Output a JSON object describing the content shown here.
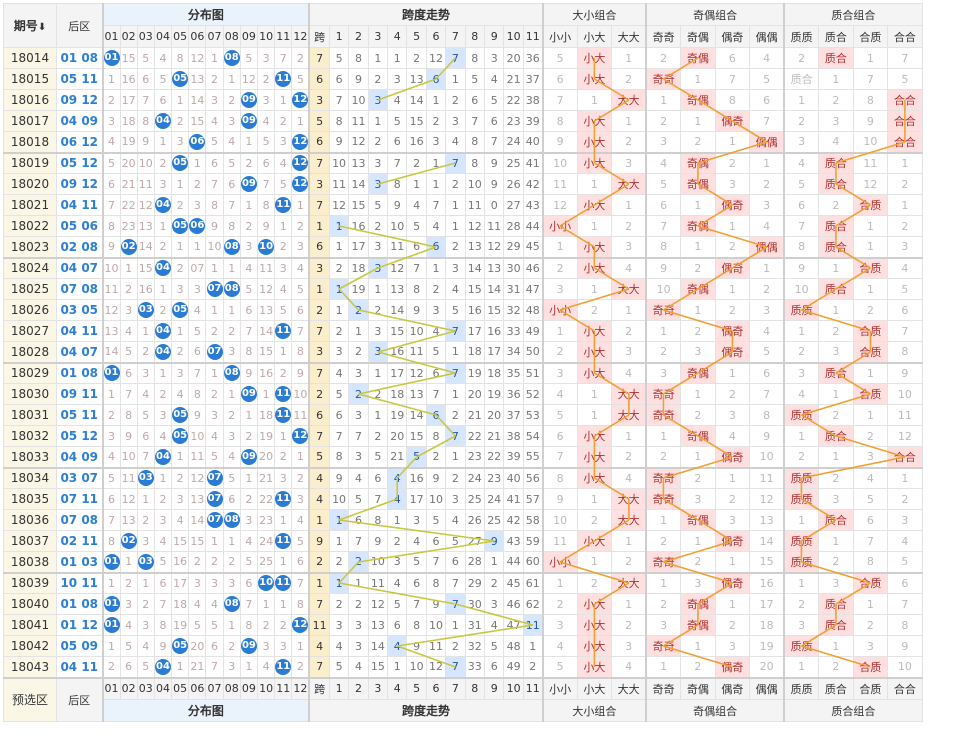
{
  "header": {
    "period": "期号",
    "sort_arrow": "⬇",
    "back": "后区",
    "dist": "分布图",
    "span": "跨度走势",
    "dx": "大小组合",
    "jo": "奇偶组合",
    "zh": "质合组合",
    "kua": "跨",
    "nums": [
      "01",
      "02",
      "03",
      "04",
      "05",
      "06",
      "07",
      "08",
      "09",
      "10",
      "11",
      "12"
    ],
    "span_cols": [
      "1",
      "2",
      "3",
      "4",
      "5",
      "6",
      "7",
      "8",
      "9",
      "10",
      "11"
    ],
    "dx_cols": [
      "小小",
      "小大",
      "大大"
    ],
    "jo_cols": [
      "奇奇",
      "奇偶",
      "偶奇",
      "偶偶"
    ],
    "zh_cols": [
      "质质",
      "质合",
      "合质",
      "合合"
    ]
  },
  "footer": {
    "pre": "预选区",
    "back": "后区",
    "dist": "分布图",
    "span": "跨度走势",
    "dx": "大小组合",
    "jo": "奇偶组合",
    "zh": "质合组合"
  },
  "colors": {
    "ball": "#2a7bd3",
    "mark": "#ffe0e0",
    "span_line": "#c8c840",
    "combo_line": "#f0a030"
  },
  "rows": [
    {
      "p": "18014",
      "b": "01 08",
      "d": [
        "01",
        "15",
        "5",
        "4",
        "8",
        "12",
        "1",
        "08",
        "5",
        "3",
        "7",
        "2"
      ],
      "k": "7",
      "s": [
        "5",
        "8",
        "1",
        "1",
        "2",
        "12",
        "7",
        "8",
        "3",
        "20",
        "36"
      ],
      "dx": [
        "5",
        "小大",
        "1"
      ],
      "jo": [
        "2",
        "奇偶",
        "6",
        "4"
      ],
      "zh": [
        "2",
        "质合",
        "1",
        "7"
      ]
    },
    {
      "p": "18015",
      "b": "05 11",
      "d": [
        "1",
        "16",
        "6",
        "5",
        "05",
        "13",
        "2",
        "1",
        "12",
        "2",
        "11",
        "5"
      ],
      "k": "6",
      "s": [
        "6",
        "9",
        "2",
        "3",
        "13",
        "6",
        "1",
        "5",
        "4",
        "21",
        "37"
      ],
      "dx": [
        "6",
        "小大",
        "2"
      ],
      "jo": [
        "奇奇",
        "1",
        "7",
        "5"
      ],
      "zh": [
        "质合",
        "1",
        "7",
        "5"
      ]
    },
    {
      "p": "18016",
      "b": "09 12",
      "d": [
        "2",
        "17",
        "7",
        "6",
        "1",
        "14",
        "3",
        "2",
        "09",
        "3",
        "1",
        "12"
      ],
      "k": "3",
      "s": [
        "7",
        "10",
        "3",
        "4",
        "14",
        "1",
        "2",
        "6",
        "5",
        "22",
        "38"
      ],
      "dx": [
        "7",
        "1",
        "大大"
      ],
      "jo": [
        "1",
        "奇偶",
        "8",
        "6"
      ],
      "zh": [
        "1",
        "2",
        "8",
        "合合"
      ]
    },
    {
      "p": "18017",
      "b": "04 09",
      "d": [
        "3",
        "18",
        "8",
        "04",
        "2",
        "15",
        "4",
        "3",
        "09",
        "4",
        "2",
        "1"
      ],
      "k": "5",
      "s": [
        "8",
        "11",
        "1",
        "5",
        "15",
        "2",
        "3",
        "7",
        "6",
        "23",
        "39"
      ],
      "dx": [
        "8",
        "小大",
        "1"
      ],
      "jo": [
        "2",
        "1",
        "偶奇",
        "7"
      ],
      "zh": [
        "2",
        "3",
        "9",
        "合合"
      ]
    },
    {
      "p": "18018",
      "b": "06 12",
      "d": [
        "4",
        "19",
        "9",
        "1",
        "3",
        "06",
        "5",
        "4",
        "1",
        "5",
        "3",
        "12"
      ],
      "k": "6",
      "s": [
        "9",
        "12",
        "2",
        "6",
        "16",
        "3",
        "4",
        "8",
        "7",
        "24",
        "40"
      ],
      "dx": [
        "9",
        "小大",
        "2"
      ],
      "jo": [
        "3",
        "2",
        "1",
        "偶偶"
      ],
      "zh": [
        "3",
        "4",
        "10",
        "合合"
      ]
    },
    {
      "p": "18019",
      "b": "05 12",
      "d": [
        "5",
        "20",
        "10",
        "2",
        "05",
        "1",
        "6",
        "5",
        "2",
        "6",
        "4",
        "12"
      ],
      "k": "7",
      "s": [
        "10",
        "13",
        "3",
        "7",
        "2",
        "1",
        "7",
        "8",
        "9",
        "25",
        "41"
      ],
      "dx": [
        "10",
        "小大",
        "3"
      ],
      "jo": [
        "4",
        "奇偶",
        "2",
        "1"
      ],
      "zh": [
        "4",
        "质合",
        "11",
        "1"
      ]
    },
    {
      "p": "18020",
      "b": "09 12",
      "d": [
        "6",
        "21",
        "11",
        "3",
        "1",
        "2",
        "7",
        "6",
        "09",
        "7",
        "5",
        "12"
      ],
      "k": "3",
      "s": [
        "11",
        "14",
        "3",
        "8",
        "1",
        "1",
        "2",
        "10",
        "9",
        "26",
        "42"
      ],
      "dx": [
        "11",
        "1",
        "大大"
      ],
      "jo": [
        "5",
        "奇偶",
        "3",
        "2"
      ],
      "zh": [
        "5",
        "质合",
        "12",
        "2"
      ]
    },
    {
      "p": "18021",
      "b": "04 11",
      "d": [
        "7",
        "22",
        "12",
        "04",
        "2",
        "3",
        "8",
        "7",
        "1",
        "8",
        "11",
        "1"
      ],
      "k": "7",
      "s": [
        "12",
        "15",
        "5",
        "9",
        "4",
        "7",
        "1",
        "11",
        "0",
        "27",
        "43"
      ],
      "dx": [
        "12",
        "小大",
        "1"
      ],
      "jo": [
        "6",
        "1",
        "偶奇",
        "3"
      ],
      "zh": [
        "6",
        "2",
        "合质",
        "1"
      ]
    },
    {
      "p": "18022",
      "b": "05 06",
      "d": [
        "8",
        "23",
        "13",
        "1",
        "05",
        "06",
        "9",
        "8",
        "2",
        "9",
        "1",
        "2"
      ],
      "k": "1",
      "s": [
        "1",
        "16",
        "2",
        "10",
        "5",
        "4",
        "1",
        "12",
        "11",
        "28",
        "44"
      ],
      "dx": [
        "小小",
        "1",
        "2"
      ],
      "jo": [
        "7",
        "奇偶",
        "1",
        "4"
      ],
      "zh": [
        "7",
        "质合",
        "1",
        "2"
      ]
    },
    {
      "p": "18023",
      "b": "02 08",
      "d": [
        "9",
        "02",
        "14",
        "2",
        "1",
        "1",
        "10",
        "08",
        "3",
        "10",
        "2",
        "3"
      ],
      "k": "6",
      "s": [
        "1",
        "17",
        "3",
        "11",
        "6",
        "6",
        "2",
        "13",
        "12",
        "29",
        "45"
      ],
      "dx": [
        "1",
        "小大",
        "3"
      ],
      "jo": [
        "8",
        "1",
        "2",
        "偶偶"
      ],
      "zh": [
        "8",
        "质合",
        "1",
        "3"
      ]
    },
    {
      "p": "18024",
      "b": "04 07",
      "d": [
        "10",
        "1",
        "15",
        "04",
        "2",
        "07",
        "1",
        "1",
        "4",
        "11",
        "3",
        "4"
      ],
      "k": "3",
      "s": [
        "2",
        "18",
        "3",
        "12",
        "7",
        "1",
        "3",
        "14",
        "13",
        "30",
        "46"
      ],
      "dx": [
        "2",
        "小大",
        "4"
      ],
      "jo": [
        "9",
        "2",
        "偶奇",
        "1"
      ],
      "zh": [
        "9",
        "1",
        "合质",
        "4"
      ]
    },
    {
      "p": "18025",
      "b": "07 08",
      "d": [
        "11",
        "2",
        "16",
        "1",
        "3",
        "3",
        "07",
        "08",
        "5",
        "12",
        "4",
        "5"
      ],
      "k": "1",
      "s": [
        "1",
        "19",
        "1",
        "13",
        "8",
        "2",
        "4",
        "15",
        "14",
        "31",
        "47"
      ],
      "dx": [
        "3",
        "1",
        "大大"
      ],
      "jo": [
        "10",
        "奇偶",
        "1",
        "2"
      ],
      "zh": [
        "10",
        "质合",
        "1",
        "5"
      ]
    },
    {
      "p": "18026",
      "b": "03 05",
      "d": [
        "12",
        "3",
        "03",
        "2",
        "05",
        "4",
        "1",
        "1",
        "6",
        "13",
        "5",
        "6"
      ],
      "k": "2",
      "s": [
        "1",
        "2",
        "2",
        "14",
        "9",
        "3",
        "5",
        "16",
        "15",
        "32",
        "48"
      ],
      "dx": [
        "小小",
        "2",
        "1"
      ],
      "jo": [
        "奇奇",
        "1",
        "2",
        "3"
      ],
      "zh": [
        "质质",
        "1",
        "2",
        "6"
      ]
    },
    {
      "p": "18027",
      "b": "04 11",
      "d": [
        "13",
        "4",
        "1",
        "04",
        "1",
        "5",
        "2",
        "2",
        "7",
        "14",
        "11",
        "7"
      ],
      "k": "7",
      "s": [
        "2",
        "1",
        "3",
        "15",
        "10",
        "4",
        "7",
        "17",
        "16",
        "33",
        "49"
      ],
      "dx": [
        "1",
        "小大",
        "2"
      ],
      "jo": [
        "1",
        "2",
        "偶奇",
        "4"
      ],
      "zh": [
        "1",
        "2",
        "合质",
        "7"
      ]
    },
    {
      "p": "18028",
      "b": "04 07",
      "d": [
        "14",
        "5",
        "2",
        "04",
        "2",
        "6",
        "07",
        "3",
        "8",
        "15",
        "1",
        "8"
      ],
      "k": "3",
      "s": [
        "3",
        "2",
        "3",
        "16",
        "11",
        "5",
        "1",
        "18",
        "17",
        "34",
        "50"
      ],
      "dx": [
        "2",
        "小大",
        "3"
      ],
      "jo": [
        "2",
        "3",
        "偶奇",
        "5"
      ],
      "zh": [
        "2",
        "3",
        "合质",
        "8"
      ]
    },
    {
      "p": "18029",
      "b": "01 08",
      "d": [
        "01",
        "6",
        "3",
        "1",
        "3",
        "7",
        "1",
        "08",
        "9",
        "16",
        "2",
        "9"
      ],
      "k": "7",
      "s": [
        "4",
        "3",
        "1",
        "17",
        "12",
        "6",
        "7",
        "19",
        "18",
        "35",
        "51"
      ],
      "dx": [
        "3",
        "小大",
        "4"
      ],
      "jo": [
        "3",
        "奇偶",
        "1",
        "6"
      ],
      "zh": [
        "3",
        "质合",
        "1",
        "9"
      ]
    },
    {
      "p": "18030",
      "b": "09 11",
      "d": [
        "1",
        "7",
        "4",
        "2",
        "4",
        "8",
        "2",
        "1",
        "09",
        "1",
        "11",
        "10"
      ],
      "k": "2",
      "s": [
        "5",
        "2",
        "2",
        "18",
        "13",
        "7",
        "1",
        "20",
        "19",
        "36",
        "52"
      ],
      "dx": [
        "4",
        "1",
        "大大"
      ],
      "jo": [
        "奇奇",
        "1",
        "2",
        "7"
      ],
      "zh": [
        "4",
        "1",
        "合质",
        "10"
      ]
    },
    {
      "p": "18031",
      "b": "05 11",
      "d": [
        "2",
        "8",
        "5",
        "3",
        "05",
        "9",
        "3",
        "2",
        "1",
        "18",
        "11",
        "11"
      ],
      "k": "6",
      "s": [
        "6",
        "3",
        "1",
        "19",
        "14",
        "6",
        "2",
        "21",
        "20",
        "37",
        "53"
      ],
      "dx": [
        "5",
        "1",
        "大大"
      ],
      "jo": [
        "奇奇",
        "2",
        "3",
        "8"
      ],
      "zh": [
        "质质",
        "2",
        "1",
        "11"
      ]
    },
    {
      "p": "18032",
      "b": "05 12",
      "d": [
        "3",
        "9",
        "6",
        "4",
        "05",
        "10",
        "4",
        "3",
        "2",
        "19",
        "1",
        "12"
      ],
      "k": "7",
      "s": [
        "7",
        "7",
        "2",
        "20",
        "15",
        "8",
        "7",
        "22",
        "21",
        "38",
        "54"
      ],
      "dx": [
        "6",
        "小大",
        "1"
      ],
      "jo": [
        "1",
        "奇偶",
        "4",
        "9"
      ],
      "zh": [
        "1",
        "质合",
        "2",
        "12"
      ]
    },
    {
      "p": "18033",
      "b": "04 09",
      "d": [
        "4",
        "10",
        "7",
        "04",
        "1",
        "11",
        "5",
        "4",
        "09",
        "20",
        "2",
        "1"
      ],
      "k": "5",
      "s": [
        "8",
        "3",
        "5",
        "21",
        "5",
        "2",
        "1",
        "23",
        "22",
        "39",
        "55"
      ],
      "dx": [
        "7",
        "小大",
        "2"
      ],
      "jo": [
        "2",
        "1",
        "偶奇",
        "10"
      ],
      "zh": [
        "2",
        "1",
        "3",
        "合合"
      ]
    },
    {
      "p": "18034",
      "b": "03 07",
      "d": [
        "5",
        "11",
        "03",
        "1",
        "2",
        "12",
        "07",
        "5",
        "1",
        "21",
        "3",
        "2"
      ],
      "k": "4",
      "s": [
        "9",
        "4",
        "6",
        "4",
        "16",
        "9",
        "2",
        "24",
        "23",
        "40",
        "56"
      ],
      "dx": [
        "8",
        "小大",
        "4"
      ],
      "jo": [
        "奇奇",
        "2",
        "1",
        "11"
      ],
      "zh": [
        "质质",
        "2",
        "4",
        "1"
      ]
    },
    {
      "p": "18035",
      "b": "07 11",
      "d": [
        "6",
        "12",
        "1",
        "2",
        "3",
        "13",
        "07",
        "6",
        "2",
        "22",
        "11",
        "3"
      ],
      "k": "4",
      "s": [
        "10",
        "5",
        "7",
        "4",
        "17",
        "10",
        "3",
        "25",
        "24",
        "41",
        "57"
      ],
      "dx": [
        "9",
        "1",
        "大大"
      ],
      "jo": [
        "奇奇",
        "3",
        "2",
        "12"
      ],
      "zh": [
        "质质",
        "3",
        "5",
        "2"
      ]
    },
    {
      "p": "18036",
      "b": "07 08",
      "d": [
        "7",
        "13",
        "2",
        "3",
        "4",
        "14",
        "07",
        "08",
        "3",
        "23",
        "1",
        "4"
      ],
      "k": "1",
      "s": [
        "1",
        "6",
        "8",
        "1",
        "3",
        "5",
        "4",
        "26",
        "25",
        "42",
        "58"
      ],
      "dx": [
        "10",
        "2",
        "大大"
      ],
      "jo": [
        "1",
        "奇偶",
        "3",
        "13"
      ],
      "zh": [
        "1",
        "质合",
        "6",
        "3"
      ]
    },
    {
      "p": "18037",
      "b": "02 11",
      "d": [
        "8",
        "02",
        "3",
        "4",
        "15",
        "15",
        "1",
        "1",
        "4",
        "24",
        "11",
        "5"
      ],
      "k": "9",
      "s": [
        "1",
        "7",
        "9",
        "2",
        "4",
        "6",
        "5",
        "27",
        "9",
        "43",
        "59"
      ],
      "dx": [
        "11",
        "小大",
        "1"
      ],
      "jo": [
        "2",
        "1",
        "偶奇",
        "14"
      ],
      "zh": [
        "质质",
        "1",
        "7",
        "4"
      ]
    },
    {
      "p": "18038",
      "b": "01 03",
      "d": [
        "01",
        "1",
        "03",
        "5",
        "16",
        "2",
        "2",
        "2",
        "5",
        "25",
        "1",
        "6"
      ],
      "k": "2",
      "s": [
        "2",
        "2",
        "10",
        "3",
        "5",
        "7",
        "6",
        "28",
        "1",
        "44",
        "60"
      ],
      "dx": [
        "小小",
        "1",
        "2"
      ],
      "jo": [
        "奇奇",
        "2",
        "1",
        "15"
      ],
      "zh": [
        "质质",
        "2",
        "8",
        "5"
      ]
    },
    {
      "p": "18039",
      "b": "10 11",
      "d": [
        "1",
        "2",
        "1",
        "6",
        "17",
        "3",
        "3",
        "3",
        "6",
        "10",
        "11",
        "7"
      ],
      "k": "1",
      "s": [
        "1",
        "1",
        "11",
        "4",
        "6",
        "8",
        "7",
        "29",
        "2",
        "45",
        "61"
      ],
      "dx": [
        "1",
        "2",
        "大大"
      ],
      "jo": [
        "1",
        "3",
        "偶奇",
        "16"
      ],
      "zh": [
        "1",
        "3",
        "合质",
        "6"
      ]
    },
    {
      "p": "18040",
      "b": "01 08",
      "d": [
        "01",
        "3",
        "2",
        "7",
        "18",
        "4",
        "4",
        "08",
        "7",
        "1",
        "1",
        "8"
      ],
      "k": "7",
      "s": [
        "2",
        "2",
        "12",
        "5",
        "7",
        "9",
        "7",
        "30",
        "3",
        "46",
        "62"
      ],
      "dx": [
        "2",
        "小大",
        "1"
      ],
      "jo": [
        "2",
        "奇偶",
        "1",
        "17"
      ],
      "zh": [
        "2",
        "质合",
        "1",
        "7"
      ]
    },
    {
      "p": "18041",
      "b": "01 12",
      "d": [
        "01",
        "4",
        "3",
        "8",
        "19",
        "5",
        "5",
        "1",
        "8",
        "2",
        "2",
        "12"
      ],
      "k": "11",
      "s": [
        "3",
        "3",
        "13",
        "6",
        "8",
        "10",
        "1",
        "31",
        "4",
        "47",
        "11"
      ],
      "dx": [
        "3",
        "小大",
        "2"
      ],
      "jo": [
        "3",
        "奇偶",
        "2",
        "18"
      ],
      "zh": [
        "3",
        "质合",
        "2",
        "8"
      ]
    },
    {
      "p": "18042",
      "b": "05 09",
      "d": [
        "1",
        "5",
        "4",
        "9",
        "05",
        "20",
        "6",
        "2",
        "09",
        "3",
        "3",
        "1"
      ],
      "k": "4",
      "s": [
        "4",
        "3",
        "14",
        "4",
        "9",
        "11",
        "2",
        "32",
        "5",
        "48",
        "1"
      ],
      "dx": [
        "4",
        "小大",
        "3"
      ],
      "jo": [
        "奇奇",
        "1",
        "3",
        "19"
      ],
      "zh": [
        "质质",
        "1",
        "3",
        "9"
      ]
    },
    {
      "p": "18043",
      "b": "04 11",
      "d": [
        "2",
        "6",
        "5",
        "04",
        "1",
        "21",
        "7",
        "3",
        "1",
        "4",
        "11",
        "2"
      ],
      "k": "7",
      "s": [
        "5",
        "4",
        "15",
        "1",
        "10",
        "12",
        "7",
        "33",
        "6",
        "49",
        "2"
      ],
      "dx": [
        "5",
        "小大",
        "4"
      ],
      "jo": [
        "1",
        "2",
        "偶奇",
        "20"
      ],
      "zh": [
        "1",
        "2",
        "合质",
        "10"
      ]
    }
  ]
}
